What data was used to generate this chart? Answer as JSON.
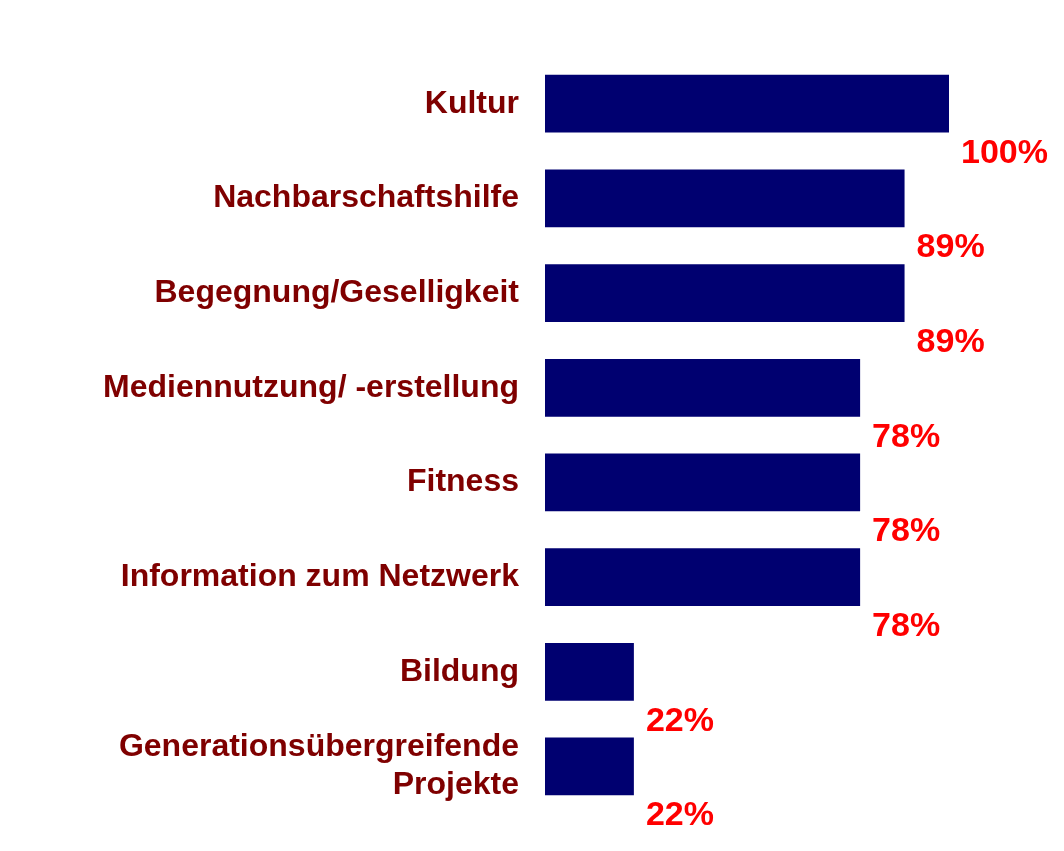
{
  "chart_data": {
    "type": "bar",
    "orientation": "horizontal",
    "categories": [
      "Kultur",
      "Nachbarschaftshilfe",
      "Begegnung/Geselligkeit",
      "Mediennutzung/ -erstellung",
      "Fitness",
      "Information zum Netzwerk",
      "Bildung",
      "Generationsübergreifende\n Projekte"
    ],
    "values": [
      100,
      89,
      89,
      78,
      78,
      78,
      22,
      22
    ],
    "value_labels": [
      "100%",
      "89%",
      "89%",
      "78%",
      "78%",
      "78%",
      "22%",
      "22%"
    ],
    "color": "#000070",
    "xlim": [
      0,
      100
    ],
    "tick_labels": "y"
  }
}
